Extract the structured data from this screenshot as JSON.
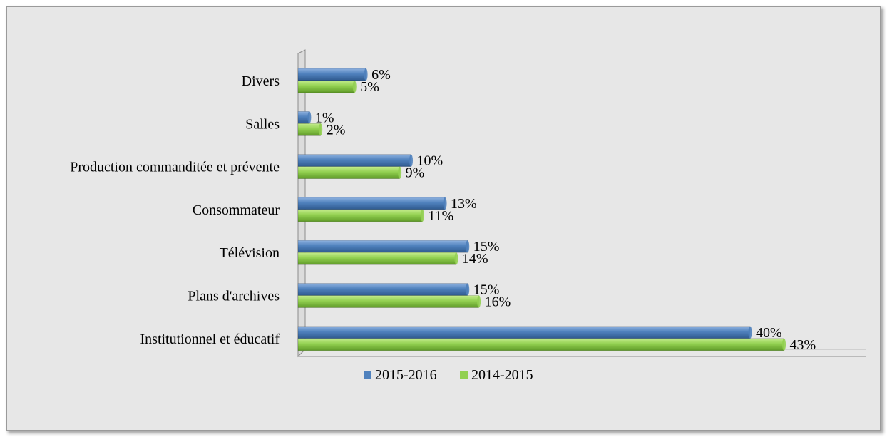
{
  "chart_data": {
    "type": "bar",
    "orientation": "horizontal",
    "categories": [
      "Divers",
      "Salles",
      "Production commanditée et prévente",
      "Consommateur",
      "Télévision",
      "Plans d'archives",
      "Institutionnel et éducatif"
    ],
    "series": [
      {
        "name": "2015-2016",
        "values": [
          6,
          1,
          10,
          13,
          15,
          15,
          40
        ],
        "labels": [
          "6%",
          "1%",
          "10%",
          "13%",
          "15%",
          "15%",
          "40%"
        ],
        "color": "#4f81bd"
      },
      {
        "name": "2014-2015",
        "values": [
          5,
          2,
          9,
          11,
          14,
          16,
          43
        ],
        "labels": [
          "5%",
          "2%",
          "9%",
          "11%",
          "14%",
          "16%",
          "43%"
        ],
        "color": "#92d050"
      }
    ],
    "xlim": [
      0,
      50
    ],
    "unit": "%",
    "grid": false,
    "legend_position": "bottom",
    "title": "",
    "xlabel": "",
    "ylabel": ""
  }
}
